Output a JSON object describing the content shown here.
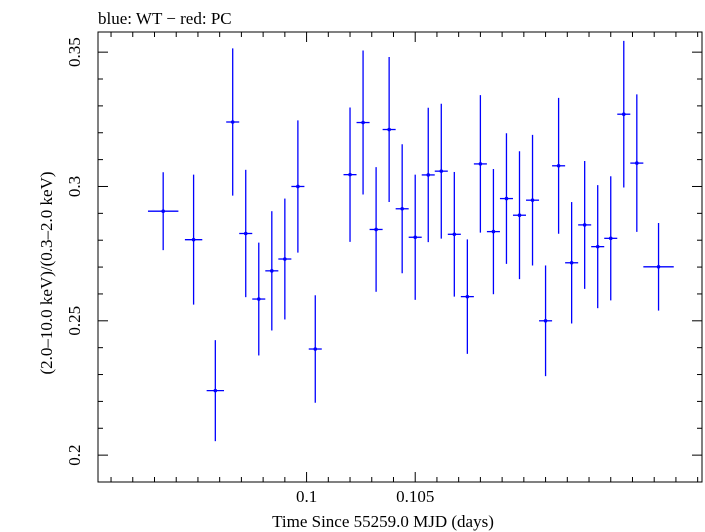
{
  "chart_data": {
    "type": "scatter",
    "title": "blue: WT − red: PC",
    "xlabel": "Time Since 55259.0 MJD (days)",
    "ylabel": "(2.0–10.0 keV)/(0.3–2.0 keV)",
    "xlim": [
      0.0904,
      0.1182
    ],
    "ylim": [
      0.19,
      0.3575
    ],
    "x_ticks": [
      {
        "value": 0.1,
        "label": "0.1"
      },
      {
        "value": 0.105,
        "label": "0.105"
      }
    ],
    "y_ticks": [
      {
        "value": 0.2,
        "label": "0.2"
      },
      {
        "value": 0.25,
        "label": "0.25"
      },
      {
        "value": 0.3,
        "label": "0.3"
      },
      {
        "value": 0.35,
        "label": "0.35"
      }
    ],
    "grid": false,
    "series": [
      {
        "name": "WT",
        "color": "#0000ff",
        "points": [
          {
            "x": 0.0934,
            "xerr": 0.0007,
            "y": 0.2908,
            "yerr": 0.0145
          },
          {
            "x": 0.0948,
            "xerr": 0.0004,
            "y": 0.2802,
            "yerr": 0.0242
          },
          {
            "x": 0.0958,
            "xerr": 0.0004,
            "y": 0.224,
            "yerr": 0.0188
          },
          {
            "x": 0.0966,
            "xerr": 0.0003,
            "y": 0.324,
            "yerr": 0.0274
          },
          {
            "x": 0.0972,
            "xerr": 0.0003,
            "y": 0.2825,
            "yerr": 0.0237
          },
          {
            "x": 0.0978,
            "xerr": 0.0003,
            "y": 0.2581,
            "yerr": 0.021
          },
          {
            "x": 0.0984,
            "xerr": 0.0003,
            "y": 0.2686,
            "yerr": 0.0222
          },
          {
            "x": 0.099,
            "xerr": 0.0003,
            "y": 0.273,
            "yerr": 0.0225
          },
          {
            "x": 0.0996,
            "xerr": 0.0003,
            "y": 0.3,
            "yerr": 0.0246
          },
          {
            "x": 0.1004,
            "xerr": 0.0003,
            "y": 0.2395,
            "yerr": 0.02
          },
          {
            "x": 0.102,
            "xerr": 0.0003,
            "y": 0.3044,
            "yerr": 0.025
          },
          {
            "x": 0.1026,
            "xerr": 0.0003,
            "y": 0.3238,
            "yerr": 0.0268
          },
          {
            "x": 0.1032,
            "xerr": 0.0003,
            "y": 0.284,
            "yerr": 0.0232
          },
          {
            "x": 0.1038,
            "xerr": 0.0003,
            "y": 0.3212,
            "yerr": 0.027
          },
          {
            "x": 0.1044,
            "xerr": 0.0003,
            "y": 0.2917,
            "yerr": 0.024
          },
          {
            "x": 0.105,
            "xerr": 0.0003,
            "y": 0.2811,
            "yerr": 0.0233
          },
          {
            "x": 0.1056,
            "xerr": 0.0003,
            "y": 0.3043,
            "yerr": 0.025
          },
          {
            "x": 0.1062,
            "xerr": 0.0003,
            "y": 0.3057,
            "yerr": 0.0251
          },
          {
            "x": 0.1068,
            "xerr": 0.0003,
            "y": 0.2822,
            "yerr": 0.0232
          },
          {
            "x": 0.1074,
            "xerr": 0.0003,
            "y": 0.259,
            "yerr": 0.0213
          },
          {
            "x": 0.108,
            "xerr": 0.0003,
            "y": 0.3084,
            "yerr": 0.0256
          },
          {
            "x": 0.1086,
            "xerr": 0.0003,
            "y": 0.2832,
            "yerr": 0.0233
          },
          {
            "x": 0.1092,
            "xerr": 0.0003,
            "y": 0.2955,
            "yerr": 0.0243
          },
          {
            "x": 0.1098,
            "xerr": 0.0003,
            "y": 0.2893,
            "yerr": 0.0238
          },
          {
            "x": 0.1104,
            "xerr": 0.0003,
            "y": 0.2949,
            "yerr": 0.0243
          },
          {
            "x": 0.111,
            "xerr": 0.0003,
            "y": 0.25,
            "yerr": 0.0206
          },
          {
            "x": 0.1116,
            "xerr": 0.0003,
            "y": 0.3077,
            "yerr": 0.0253
          },
          {
            "x": 0.1122,
            "xerr": 0.0003,
            "y": 0.2716,
            "yerr": 0.0226
          },
          {
            "x": 0.1128,
            "xerr": 0.0003,
            "y": 0.2857,
            "yerr": 0.0238
          },
          {
            "x": 0.1134,
            "xerr": 0.0003,
            "y": 0.2776,
            "yerr": 0.0229
          },
          {
            "x": 0.114,
            "xerr": 0.0003,
            "y": 0.2807,
            "yerr": 0.0231
          },
          {
            "x": 0.1146,
            "xerr": 0.0003,
            "y": 0.3269,
            "yerr": 0.0273
          },
          {
            "x": 0.1152,
            "xerr": 0.0003,
            "y": 0.3087,
            "yerr": 0.0256
          },
          {
            "x": 0.1162,
            "xerr": 0.0007,
            "y": 0.2701,
            "yerr": 0.0163
          }
        ]
      }
    ]
  }
}
